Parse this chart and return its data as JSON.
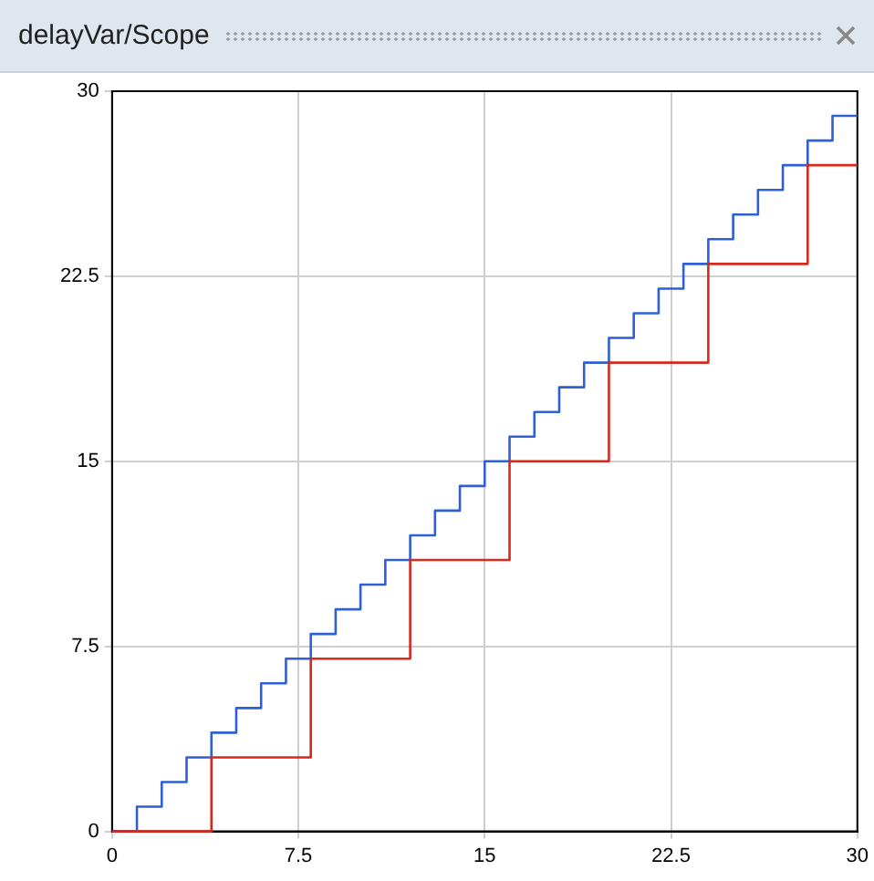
{
  "chart_data": {
    "type": "step",
    "title": "delayVar/Scope",
    "series": [
      {
        "color": "#d6281c",
        "x": [
          0,
          4,
          8,
          12,
          16,
          20,
          24,
          28,
          30
        ],
        "values": [
          0,
          3,
          7,
          11,
          15,
          19,
          23,
          27,
          27
        ]
      },
      {
        "color": "#2e5fd6",
        "x": [
          0,
          1,
          2,
          3,
          4,
          5,
          6,
          7,
          8,
          9,
          10,
          11,
          12,
          13,
          14,
          15,
          16,
          17,
          18,
          19,
          20,
          21,
          22,
          23,
          24,
          25,
          26,
          27,
          28,
          29,
          30
        ],
        "values": [
          0,
          1,
          2,
          3,
          4,
          5,
          6,
          7,
          8,
          9,
          10,
          11,
          12,
          13,
          14,
          15,
          16,
          17,
          18,
          19,
          20,
          21,
          22,
          23,
          24,
          25,
          26,
          27,
          28,
          29,
          29
        ]
      }
    ],
    "xlim": [
      0,
      30
    ],
    "xticks": [
      0,
      7.5,
      15,
      22.5,
      30
    ],
    "ylim": [
      0,
      30
    ],
    "yticks": [
      0,
      7.5,
      15,
      22.5,
      30
    ],
    "grid": true,
    "legend": false
  }
}
